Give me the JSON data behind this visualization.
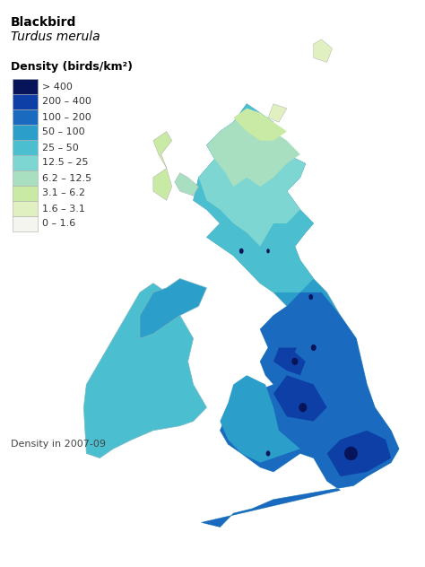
{
  "title_line1": "Blackbird",
  "title_line2": "Turdus merula",
  "legend_title": "Density (birds/km²)",
  "legend_labels": [
    "> 400",
    "200 – 400",
    "100 – 200",
    "50 – 100",
    "25 – 50",
    "12.5 – 25",
    "6.2 – 12.5",
    "3.1 – 6.2",
    "1.6 – 3.1",
    "0 – 1.6"
  ],
  "legend_colors": [
    "#08145a",
    "#0d3fa6",
    "#1a6bbf",
    "#2b9ec9",
    "#4bbfcf",
    "#7dd6d1",
    "#a8dfc0",
    "#c8eaa4",
    "#e0f0c0",
    "#f5f5f0"
  ],
  "subtitle": "Density in 2007-09",
  "bg_color": "#ffffff",
  "title_fontsize": 10,
  "legend_fontsize": 8,
  "subtitle_fontsize": 8
}
